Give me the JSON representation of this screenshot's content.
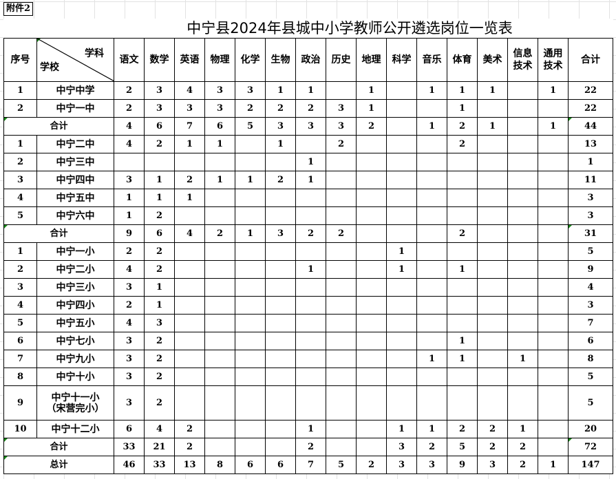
{
  "attachment_label": "附件2",
  "title": "中宁县2024年县城中小学教师公开遴选岗位一览表",
  "header": {
    "index": "序号",
    "subject_corner": "学科",
    "school_corner": "学校",
    "subjects": [
      "语文",
      "数学",
      "英语",
      "物理",
      "化学",
      "生物",
      "政治",
      "历史",
      "地理",
      "科学",
      "音乐",
      "体育",
      "美术",
      "信息技术",
      "通用技术"
    ],
    "total": "合计"
  },
  "rows": [
    {
      "idx": "1",
      "school": "中宁中学",
      "values": [
        "2",
        "3",
        "4",
        "3",
        "3",
        "1",
        "1",
        "",
        "1",
        "",
        "1",
        "1",
        "1",
        "",
        "1"
      ],
      "total": "22"
    },
    {
      "idx": "2",
      "school": "中宁一中",
      "values": [
        "2",
        "3",
        "3",
        "3",
        "2",
        "2",
        "2",
        "3",
        "1",
        "",
        "",
        "1",
        "",
        "",
        ""
      ],
      "total": "22"
    },
    {
      "subtotal": true,
      "school": "合计",
      "values": [
        "4",
        "6",
        "7",
        "6",
        "5",
        "3",
        "3",
        "3",
        "2",
        "",
        "1",
        "2",
        "1",
        "",
        "1"
      ],
      "total": "44"
    },
    {
      "idx": "1",
      "school": "中宁二中",
      "values": [
        "4",
        "2",
        "1",
        "1",
        "",
        "1",
        "",
        "2",
        "",
        "",
        "",
        "2",
        "",
        "",
        ""
      ],
      "total": "13"
    },
    {
      "idx": "2",
      "school": "中宁三中",
      "values": [
        "",
        "",
        "",
        "",
        "",
        "",
        "1",
        "",
        "",
        "",
        "",
        "",
        "",
        "",
        ""
      ],
      "total": "1"
    },
    {
      "idx": "3",
      "school": "中宁四中",
      "values": [
        "3",
        "1",
        "2",
        "1",
        "1",
        "2",
        "1",
        "",
        "",
        "",
        "",
        "",
        "",
        "",
        ""
      ],
      "total": "11"
    },
    {
      "idx": "4",
      "school": "中宁五中",
      "values": [
        "1",
        "1",
        "1",
        "",
        "",
        "",
        "",
        "",
        "",
        "",
        "",
        "",
        "",
        "",
        ""
      ],
      "total": "3"
    },
    {
      "idx": "5",
      "school": "中宁六中",
      "values": [
        "1",
        "2",
        "",
        "",
        "",
        "",
        "",
        "",
        "",
        "",
        "",
        "",
        "",
        "",
        ""
      ],
      "total": "3"
    },
    {
      "subtotal": true,
      "school": "合计",
      "values": [
        "9",
        "6",
        "4",
        "2",
        "1",
        "3",
        "2",
        "2",
        "",
        "",
        "",
        "2",
        "",
        "",
        ""
      ],
      "total": "31"
    },
    {
      "idx": "1",
      "school": "中宁一小",
      "values": [
        "2",
        "2",
        "",
        "",
        "",
        "",
        "",
        "",
        "",
        "1",
        "",
        "",
        "",
        "",
        ""
      ],
      "total": "5"
    },
    {
      "idx": "2",
      "school": "中宁二小",
      "values": [
        "4",
        "2",
        "",
        "",
        "",
        "",
        "1",
        "",
        "",
        "1",
        "",
        "1",
        "",
        "",
        ""
      ],
      "total": "9"
    },
    {
      "idx": "3",
      "school": "中宁三小",
      "values": [
        "3",
        "1",
        "",
        "",
        "",
        "",
        "",
        "",
        "",
        "",
        "",
        "",
        "",
        "",
        ""
      ],
      "total": "4"
    },
    {
      "idx": "4",
      "school": "中宁四小",
      "values": [
        "2",
        "1",
        "",
        "",
        "",
        "",
        "",
        "",
        "",
        "",
        "",
        "",
        "",
        "",
        ""
      ],
      "total": "3"
    },
    {
      "idx": "5",
      "school": "中宁五小",
      "values": [
        "4",
        "3",
        "",
        "",
        "",
        "",
        "",
        "",
        "",
        "",
        "",
        "",
        "",
        "",
        ""
      ],
      "total": "7"
    },
    {
      "idx": "6",
      "school": "中宁七小",
      "values": [
        "3",
        "2",
        "",
        "",
        "",
        "",
        "",
        "",
        "",
        "",
        "",
        "1",
        "",
        "",
        ""
      ],
      "total": "6"
    },
    {
      "idx": "7",
      "school": "中宁九小",
      "values": [
        "3",
        "2",
        "",
        "",
        "",
        "",
        "",
        "",
        "",
        "",
        "1",
        "1",
        "",
        "1",
        ""
      ],
      "total": "8"
    },
    {
      "idx": "8",
      "school": "中宁十小",
      "values": [
        "3",
        "2",
        "",
        "",
        "",
        "",
        "",
        "",
        "",
        "",
        "",
        "",
        "",
        "",
        ""
      ],
      "total": "5"
    },
    {
      "idx": "9",
      "school": "中宁十一小\n（宋营完小）",
      "tall": true,
      "values": [
        "3",
        "2",
        "",
        "",
        "",
        "",
        "",
        "",
        "",
        "",
        "",
        "",
        "",
        "",
        ""
      ],
      "total": "5"
    },
    {
      "idx": "10",
      "school": "中宁十二小",
      "values": [
        "6",
        "4",
        "2",
        "",
        "",
        "",
        "1",
        "",
        "",
        "1",
        "1",
        "2",
        "2",
        "1",
        ""
      ],
      "total": "20"
    },
    {
      "subtotal": true,
      "school": "合计",
      "values": [
        "33",
        "21",
        "2",
        "",
        "",
        "",
        "2",
        "",
        "",
        "3",
        "2",
        "5",
        "2",
        "2",
        ""
      ],
      "total": "72"
    },
    {
      "subtotal": true,
      "school": "总计",
      "values": [
        "46",
        "33",
        "13",
        "8",
        "6",
        "6",
        "7",
        "5",
        "2",
        "3",
        "3",
        "9",
        "3",
        "2",
        "1"
      ],
      "total": "147"
    }
  ]
}
